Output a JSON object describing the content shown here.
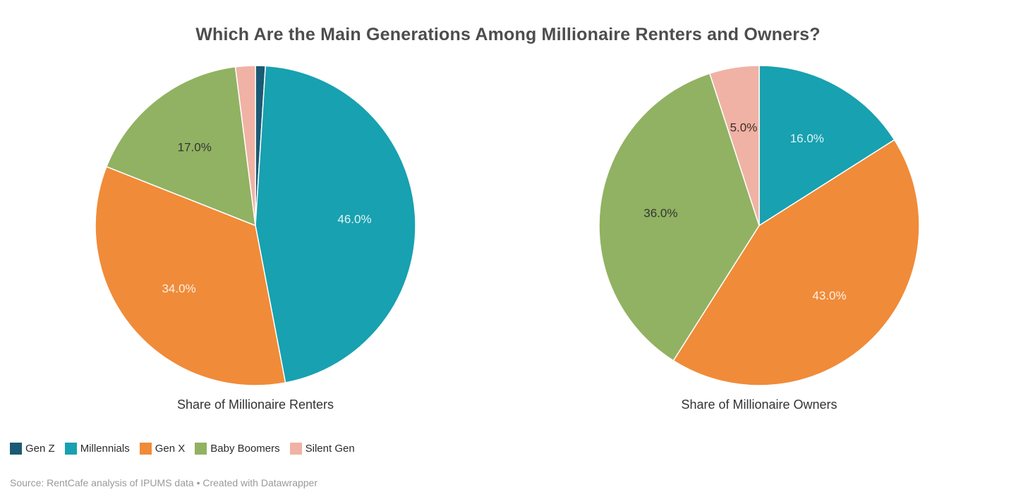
{
  "title": "Which Are the Main Generations Among Millionaire Renters and Owners?",
  "source_note": "Source: RentCafe analysis of IPUMS data • Created with Datawrapper",
  "colors": {
    "background": "#ffffff",
    "title_text": "#4d4d4d",
    "pie_subtitle_text": "#333333",
    "legend_text": "#2b2b2b",
    "source_text": "#9a9a9a",
    "slice_border": "#ffffff"
  },
  "chart_data": {
    "type": "pie",
    "layout": "two pie multiples, slices start at 12 o'clock and run clockwise in category order",
    "legend_position": "bottom-left",
    "categories": [
      {
        "name": "Gen Z",
        "color": "#1b5a74",
        "label_color": "#f2f8f8"
      },
      {
        "name": "Millennials",
        "color": "#18a1b0",
        "label_color": "#e3f4f5"
      },
      {
        "name": "Gen X",
        "color": "#f08b39",
        "label_color": "#fdf2e6"
      },
      {
        "name": "Baby Boomers",
        "color": "#91b262",
        "label_color": "#333333"
      },
      {
        "name": "Silent Gen",
        "color": "#f0b2a4",
        "label_color": "#3c2e29"
      }
    ],
    "pies": [
      {
        "title": "Share of Millionaire Renters",
        "values": [
          1.0,
          46.0,
          34.0,
          17.0,
          2.0
        ],
        "labels": [
          "",
          "46.0%",
          "34.0%",
          "17.0%",
          ""
        ]
      },
      {
        "title": "Share of Millionaire Owners",
        "values": [
          0.0,
          16.0,
          43.0,
          36.0,
          5.0
        ],
        "labels": [
          "",
          "16.0%",
          "43.0%",
          "36.0%",
          "5.0%"
        ]
      }
    ]
  }
}
